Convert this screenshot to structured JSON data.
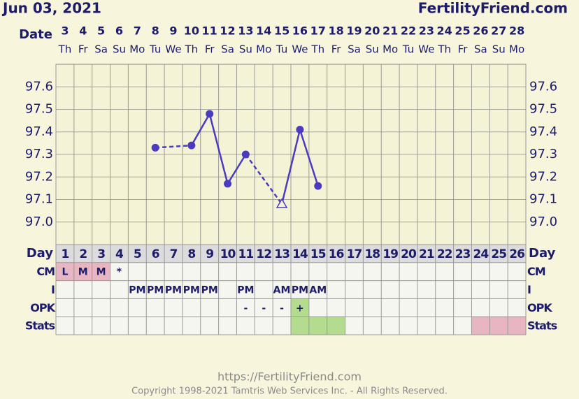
{
  "header": {
    "date": "Jun 03, 2021",
    "site": "FertilityFriend.com"
  },
  "chart_data": {
    "type": "line",
    "date_label": "Date",
    "dates": [
      3,
      4,
      5,
      6,
      7,
      8,
      9,
      10,
      11,
      12,
      13,
      14,
      15,
      16,
      17,
      18,
      19,
      20,
      21,
      22,
      23,
      24,
      25,
      26,
      27,
      28
    ],
    "weekdays": [
      "Th",
      "Fr",
      "Sa",
      "Su",
      "Mo",
      "Tu",
      "We",
      "Th",
      "Fr",
      "Sa",
      "Su",
      "Mo",
      "Tu",
      "We",
      "Th",
      "Fr",
      "Sa",
      "Su",
      "Mo",
      "Tu",
      "We",
      "Th",
      "Fr",
      "Sa",
      "Su",
      "Mo"
    ],
    "day_label": "Day",
    "categories": [
      1,
      2,
      3,
      4,
      5,
      6,
      7,
      8,
      9,
      10,
      11,
      12,
      13,
      14,
      15,
      16,
      17,
      18,
      19,
      20,
      21,
      22,
      23,
      24,
      25,
      26
    ],
    "values": [
      null,
      null,
      null,
      null,
      null,
      97.33,
      null,
      97.34,
      97.48,
      97.17,
      97.3,
      null,
      97.08,
      97.41,
      97.16,
      null,
      null,
      null,
      null,
      null,
      null,
      null,
      null,
      null,
      null,
      null
    ],
    "open_markers": [
      12
    ],
    "color": "#4b3cbf",
    "ylim": [
      96.9,
      97.7
    ],
    "yticks": [
      {
        "value": 97.0,
        "label": "97.0"
      },
      97.1,
      97.2,
      97.3,
      97.4,
      97.5,
      97.6
    ],
    "grid": true
  },
  "rows": [
    {
      "label": "CM",
      "cells": [
        "L",
        "M",
        "M",
        "*",
        null,
        null,
        null,
        null,
        null,
        null,
        null,
        null,
        null,
        null,
        null,
        null,
        null,
        null,
        null,
        null,
        null,
        null,
        null,
        null,
        null,
        null
      ],
      "colors": [
        "#e8b6c2",
        "#e8b6c2",
        "#e8b6c2",
        null,
        null,
        null,
        null,
        null,
        null,
        null,
        null,
        null,
        null,
        null,
        null,
        null,
        null,
        null,
        null,
        null,
        null,
        null,
        null,
        null,
        null,
        null
      ]
    },
    {
      "label": "I",
      "cells": [
        null,
        null,
        null,
        null,
        "PM",
        "PM",
        "PM",
        "PM",
        "PM",
        null,
        "PM",
        null,
        "AM",
        "PM",
        "AM",
        null,
        null,
        null,
        null,
        null,
        null,
        null,
        null,
        null,
        null,
        null
      ],
      "colors": [
        null,
        null,
        null,
        null,
        null,
        null,
        null,
        null,
        null,
        null,
        null,
        null,
        null,
        null,
        null,
        null,
        null,
        null,
        null,
        null,
        null,
        null,
        null,
        null,
        null,
        null
      ]
    },
    {
      "label": "OPK",
      "cells": [
        null,
        null,
        null,
        null,
        null,
        null,
        null,
        null,
        null,
        null,
        "-",
        "-",
        "-",
        "+",
        null,
        null,
        null,
        null,
        null,
        null,
        null,
        null,
        null,
        null,
        null,
        null
      ],
      "colors": [
        null,
        null,
        null,
        null,
        null,
        null,
        null,
        null,
        null,
        null,
        null,
        null,
        null,
        "#b3dc8f",
        null,
        null,
        null,
        null,
        null,
        null,
        null,
        null,
        null,
        null,
        null,
        null
      ]
    },
    {
      "label": "Stats",
      "cells": [
        null,
        null,
        null,
        null,
        null,
        null,
        null,
        null,
        null,
        null,
        null,
        null,
        null,
        null,
        null,
        null,
        null,
        null,
        null,
        null,
        null,
        null,
        null,
        null,
        null,
        null
      ],
      "colors": [
        null,
        null,
        null,
        null,
        null,
        null,
        null,
        null,
        null,
        null,
        null,
        null,
        null,
        "#b3dc8f",
        "#b3dc8f",
        "#b3dc8f",
        null,
        null,
        null,
        null,
        null,
        null,
        null,
        "#e8b6c2",
        "#e8b6c2",
        "#e8b6c2"
      ]
    }
  ],
  "footer": {
    "url": "https://FertilityFriend.com",
    "copyright": "Copyright 1998-2021 Tamtris Web Services Inc. - All Rights Reserved."
  }
}
